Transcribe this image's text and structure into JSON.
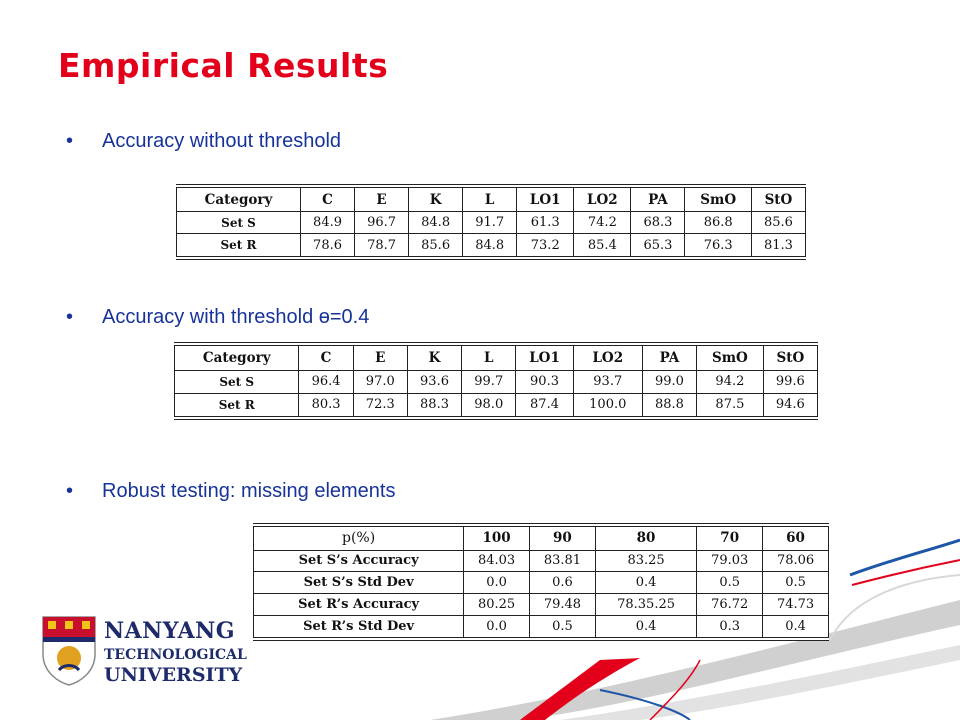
{
  "title": "Empirical Results",
  "bullets": [
    "Accuracy without threshold",
    "Accuracy with threshold ɵ=0.4",
    "Robust testing: missing elements"
  ],
  "table1": {
    "header": [
      "Category",
      "C",
      "E",
      "K",
      "L",
      "LO1",
      "LO2",
      "PA",
      "SmO",
      "StO"
    ],
    "rows": [
      [
        "Set S",
        "84.9",
        "96.7",
        "84.8",
        "91.7",
        "61.3",
        "74.2",
        "68.3",
        "86.8",
        "85.6"
      ],
      [
        "Set R",
        "78.6",
        "78.7",
        "85.6",
        "84.8",
        "73.2",
        "85.4",
        "65.3",
        "76.3",
        "81.3"
      ]
    ]
  },
  "table2": {
    "header": [
      "Category",
      "C",
      "E",
      "K",
      "L",
      "LO1",
      "LO2",
      "PA",
      "SmO",
      "StO"
    ],
    "rows": [
      [
        "Set S",
        "96.4",
        "97.0",
        "93.6",
        "99.7",
        "90.3",
        "93.7",
        "99.0",
        "94.2",
        "99.6"
      ],
      [
        "Set R",
        "80.3",
        "72.3",
        "88.3",
        "98.0",
        "87.4",
        "100.0",
        "88.8",
        "87.5",
        "94.6"
      ]
    ]
  },
  "table3": {
    "header": [
      "p(%)",
      "100",
      "90",
      "80",
      "70",
      "60"
    ],
    "rows": [
      [
        "Set S’s Accuracy",
        "84.03",
        "83.81",
        "83.25",
        "79.03",
        "78.06"
      ],
      [
        "Set S’s Std Dev",
        "0.0",
        "0.6",
        "0.4",
        "0.5",
        "0.5"
      ],
      [
        "Set R’s Accuracy",
        "80.25",
        "79.48",
        "78.35.25",
        "76.72",
        "74.73"
      ],
      [
        "Set R’s Std Dev",
        "0.0",
        "0.5",
        "0.4",
        "0.3",
        "0.4"
      ]
    ]
  },
  "logo": {
    "line1": "NANYANG",
    "line2": "TECHNOLOGICAL",
    "line3": "UNIVERSITY"
  },
  "colors": {
    "title": "#e3001b",
    "bullet_text": "#17339a",
    "logo_text": "#1d2a6b",
    "swoosh_red": "#e3001b",
    "swoosh_blue": "#1e56a8",
    "swoosh_gray": "#c8c8c8"
  }
}
